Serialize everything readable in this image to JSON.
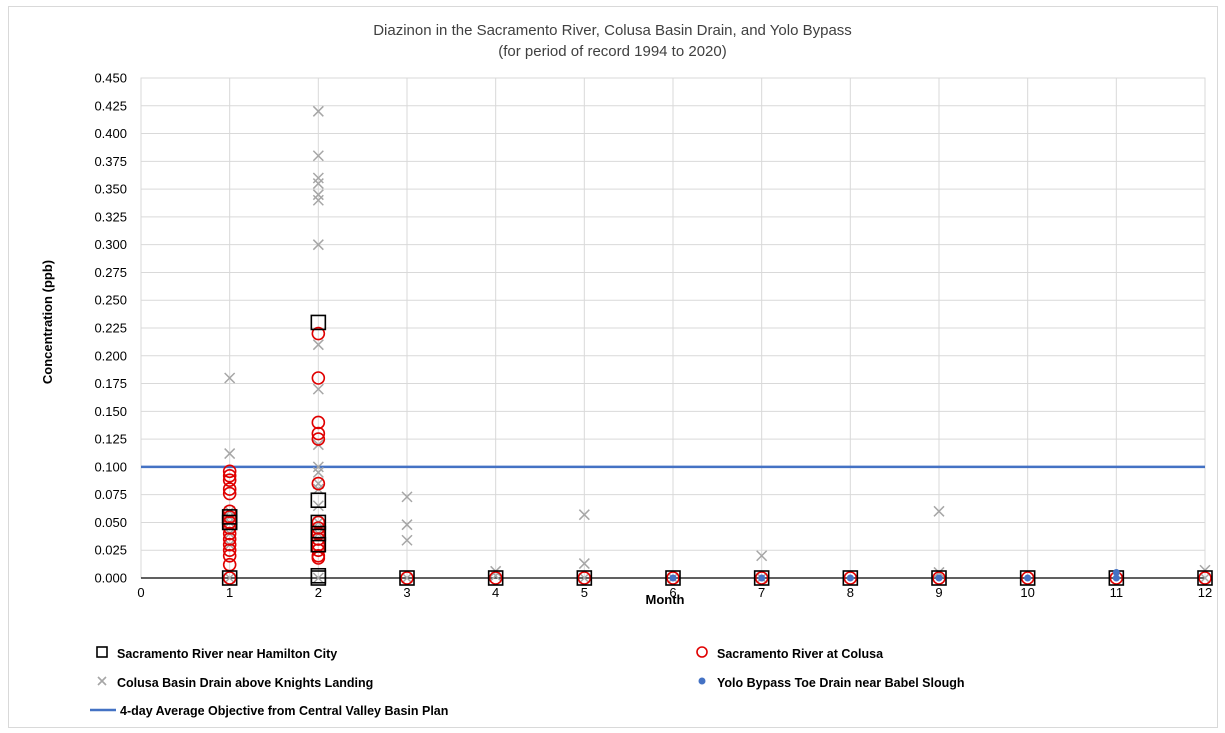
{
  "chart_data": {
    "type": "scatter",
    "title": "Diazinon in the Sacramento River, Colusa Basin Drain, and Yolo Bypass",
    "subtitle": "(for period of record 1994 to 2020)",
    "xlabel": "Month",
    "ylabel": "Concentration (ppb)",
    "xlim": [
      0,
      12
    ],
    "ylim": [
      0,
      0.45
    ],
    "xticks": [
      "0",
      "1",
      "2",
      "3",
      "4",
      "5",
      "6",
      "7",
      "8",
      "9",
      "10",
      "11",
      "12"
    ],
    "yticks": [
      "0.000",
      "0.025",
      "0.050",
      "0.075",
      "0.100",
      "0.125",
      "0.150",
      "0.175",
      "0.200",
      "0.225",
      "0.250",
      "0.275",
      "0.300",
      "0.325",
      "0.350",
      "0.375",
      "0.400",
      "0.425",
      "0.450"
    ],
    "grid": true,
    "legend_position": "bottom",
    "series": [
      {
        "name": "Sacramento River near Hamilton City",
        "marker": "square-open",
        "color": "#000000",
        "x": [
          1,
          1,
          1,
          2,
          2,
          2,
          2,
          2,
          2,
          2,
          3,
          4,
          5,
          6,
          7,
          8,
          9,
          10,
          11,
          12
        ],
        "y": [
          0.0,
          0.05,
          0.055,
          0.23,
          0.07,
          0.05,
          0.04,
          0.03,
          0.002,
          0.0,
          0.0,
          0.0,
          0.0,
          0.0,
          0.0,
          0.0,
          0.0,
          0.0,
          0.0,
          0.0
        ]
      },
      {
        "name": "Sacramento River at Colusa",
        "marker": "circle-open",
        "color": "#e00000",
        "x": [
          1,
          1,
          1,
          1,
          1,
          1,
          1,
          1,
          1,
          1,
          1,
          1,
          1,
          1,
          1,
          1,
          2,
          2,
          2,
          2,
          2,
          2,
          2,
          2,
          2,
          2,
          2,
          2,
          2,
          2,
          3,
          4,
          5,
          6,
          7,
          8,
          9,
          10,
          11,
          12
        ],
        "y": [
          0.096,
          0.092,
          0.088,
          0.08,
          0.076,
          0.06,
          0.055,
          0.05,
          0.045,
          0.04,
          0.035,
          0.03,
          0.025,
          0.02,
          0.012,
          0.0,
          0.22,
          0.18,
          0.14,
          0.13,
          0.125,
          0.085,
          0.05,
          0.045,
          0.04,
          0.035,
          0.03,
          0.025,
          0.02,
          0.018,
          0.0,
          0.0,
          0.0,
          0.0,
          0.0,
          0.0,
          0.0,
          0.0,
          0.0,
          0.0
        ]
      },
      {
        "name": "Colusa Basin Drain above Knights Landing",
        "marker": "x",
        "color": "#a6a6a6",
        "x": [
          1,
          1,
          1,
          1,
          1,
          1,
          1,
          1,
          2,
          2,
          2,
          2,
          2,
          2,
          2,
          2,
          2,
          2,
          2,
          2,
          2,
          2,
          2,
          2,
          2,
          2,
          3,
          3,
          3,
          3,
          4,
          4,
          5,
          5,
          5,
          6,
          7,
          7,
          9,
          9,
          12,
          12
        ],
        "y": [
          0.18,
          0.112,
          0.06,
          0.055,
          0.05,
          0.04,
          0.03,
          0.0,
          0.42,
          0.38,
          0.36,
          0.355,
          0.345,
          0.34,
          0.3,
          0.21,
          0.17,
          0.12,
          0.1,
          0.095,
          0.085,
          0.08,
          0.065,
          0.05,
          0.04,
          0.0,
          0.073,
          0.048,
          0.034,
          0.0,
          0.006,
          0.002,
          0.057,
          0.013,
          0.0,
          0.0,
          0.02,
          0.0,
          0.06,
          0.005,
          0.007,
          0.0
        ]
      },
      {
        "name": "Yolo Bypass Toe Drain near Babel Slough",
        "marker": "dot",
        "color": "#4472c4",
        "x": [
          6,
          7,
          8,
          9,
          10,
          11,
          11
        ],
        "y": [
          0.0,
          0.0,
          0.0,
          0.0,
          0.0,
          0.005,
          0.0
        ]
      },
      {
        "name": "4-day Average Objective from Central Valley Basin Plan",
        "type": "line",
        "color": "#4472c4",
        "x": [
          0,
          12
        ],
        "y": [
          0.1,
          0.1
        ]
      }
    ]
  }
}
